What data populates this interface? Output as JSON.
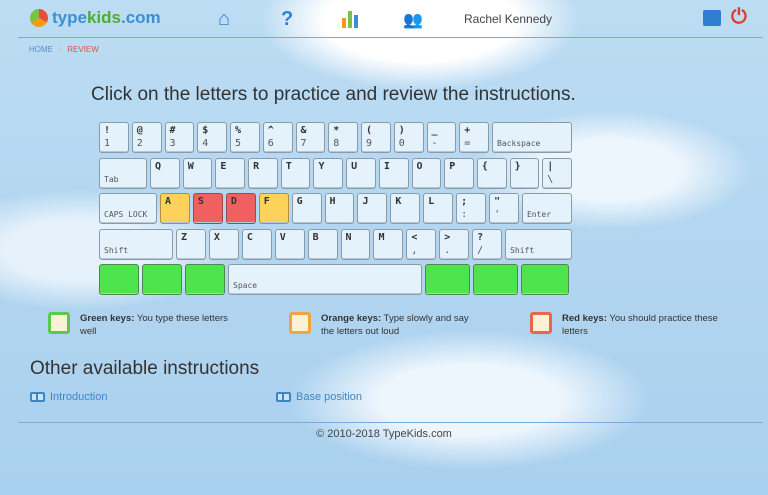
{
  "header": {
    "logo_prefix": "type",
    "logo_mid": "kids",
    "logo_suffix": ".com",
    "user": "Rachel Kennedy",
    "nav_icons": [
      "home-icon",
      "help-icon",
      "stats-icon",
      "users-icon"
    ],
    "right_icons": [
      "profile-card-icon",
      "power-icon"
    ]
  },
  "breadcrumb": {
    "home": "HOME",
    "sep": "/",
    "current": "REVIEW"
  },
  "title": "Click on the letters to practice and review the instructions.",
  "colors": {
    "green": "#4ee44e",
    "orange": "#fcd25a",
    "red": "#f16060",
    "link": "#3d86c6"
  },
  "keyboard": [
    [
      {
        "t": "!",
        "b": "1"
      },
      {
        "t": "@",
        "b": "2"
      },
      {
        "t": "#",
        "b": "3"
      },
      {
        "t": "$",
        "b": "4"
      },
      {
        "t": "%",
        "b": "5"
      },
      {
        "t": "^",
        "b": "6"
      },
      {
        "t": "&",
        "b": "7"
      },
      {
        "t": "*",
        "b": "8"
      },
      {
        "t": "(",
        "b": "9"
      },
      {
        "t": ")",
        "b": "0"
      },
      {
        "t": "_",
        "b": "-"
      },
      {
        "t": "+",
        "b": "="
      },
      {
        "lbl": "Backspace",
        "w": 80
      }
    ],
    [
      {
        "lbl": "Tab",
        "w": 48
      },
      {
        "t": "Q"
      },
      {
        "t": "W"
      },
      {
        "t": "E"
      },
      {
        "t": "R"
      },
      {
        "t": "T"
      },
      {
        "t": "Y"
      },
      {
        "t": "U"
      },
      {
        "t": "I"
      },
      {
        "t": "O"
      },
      {
        "t": "P"
      },
      {
        "t": "{"
      },
      {
        "t": "}"
      },
      {
        "t": "|",
        "b": "\\"
      }
    ],
    [
      {
        "lbl": "CAPS LOCK",
        "w": 58
      },
      {
        "t": "A",
        "s": "orange"
      },
      {
        "t": "S",
        "s": "red"
      },
      {
        "t": "D",
        "s": "red"
      },
      {
        "t": "F",
        "s": "orange"
      },
      {
        "t": "G"
      },
      {
        "t": "H"
      },
      {
        "t": "J"
      },
      {
        "t": "K"
      },
      {
        "t": "L"
      },
      {
        "t": ";",
        "b": ":"
      },
      {
        "t": "\"",
        "b": "'"
      },
      {
        "lbl": "Enter",
        "w": 50
      }
    ],
    [
      {
        "lbl": "Shift",
        "w": 74
      },
      {
        "t": "Z"
      },
      {
        "t": "X"
      },
      {
        "t": "C"
      },
      {
        "t": "V"
      },
      {
        "t": "B"
      },
      {
        "t": "N"
      },
      {
        "t": "M"
      },
      {
        "t": "<",
        "b": ","
      },
      {
        "t": ">",
        "b": "."
      },
      {
        "t": "?",
        "b": "/"
      },
      {
        "lbl": "Shift",
        "w": 67
      }
    ],
    [
      {
        "s": "green",
        "w": 40
      },
      {
        "s": "green",
        "w": 40
      },
      {
        "s": "green",
        "w": 40
      },
      {
        "lbl": "Space",
        "w": 194
      },
      {
        "s": "green",
        "w": 45
      },
      {
        "s": "green",
        "w": 45
      },
      {
        "s": "green",
        "w": 48
      }
    ]
  ],
  "legend": [
    {
      "title": "Green keys:",
      "text": "You type these letters well",
      "color": "#5cc94a"
    },
    {
      "title": "Orange keys:",
      "text": "Type slowly and say the letters out loud",
      "color": "#f0a540"
    },
    {
      "title": "Red keys:",
      "text": "You should practice these letters",
      "color": "#e8664f"
    }
  ],
  "other_title": "Other available instructions",
  "links": [
    "Introduction",
    "Base position"
  ],
  "footer": "© 2010-2018 TypeKids.com"
}
